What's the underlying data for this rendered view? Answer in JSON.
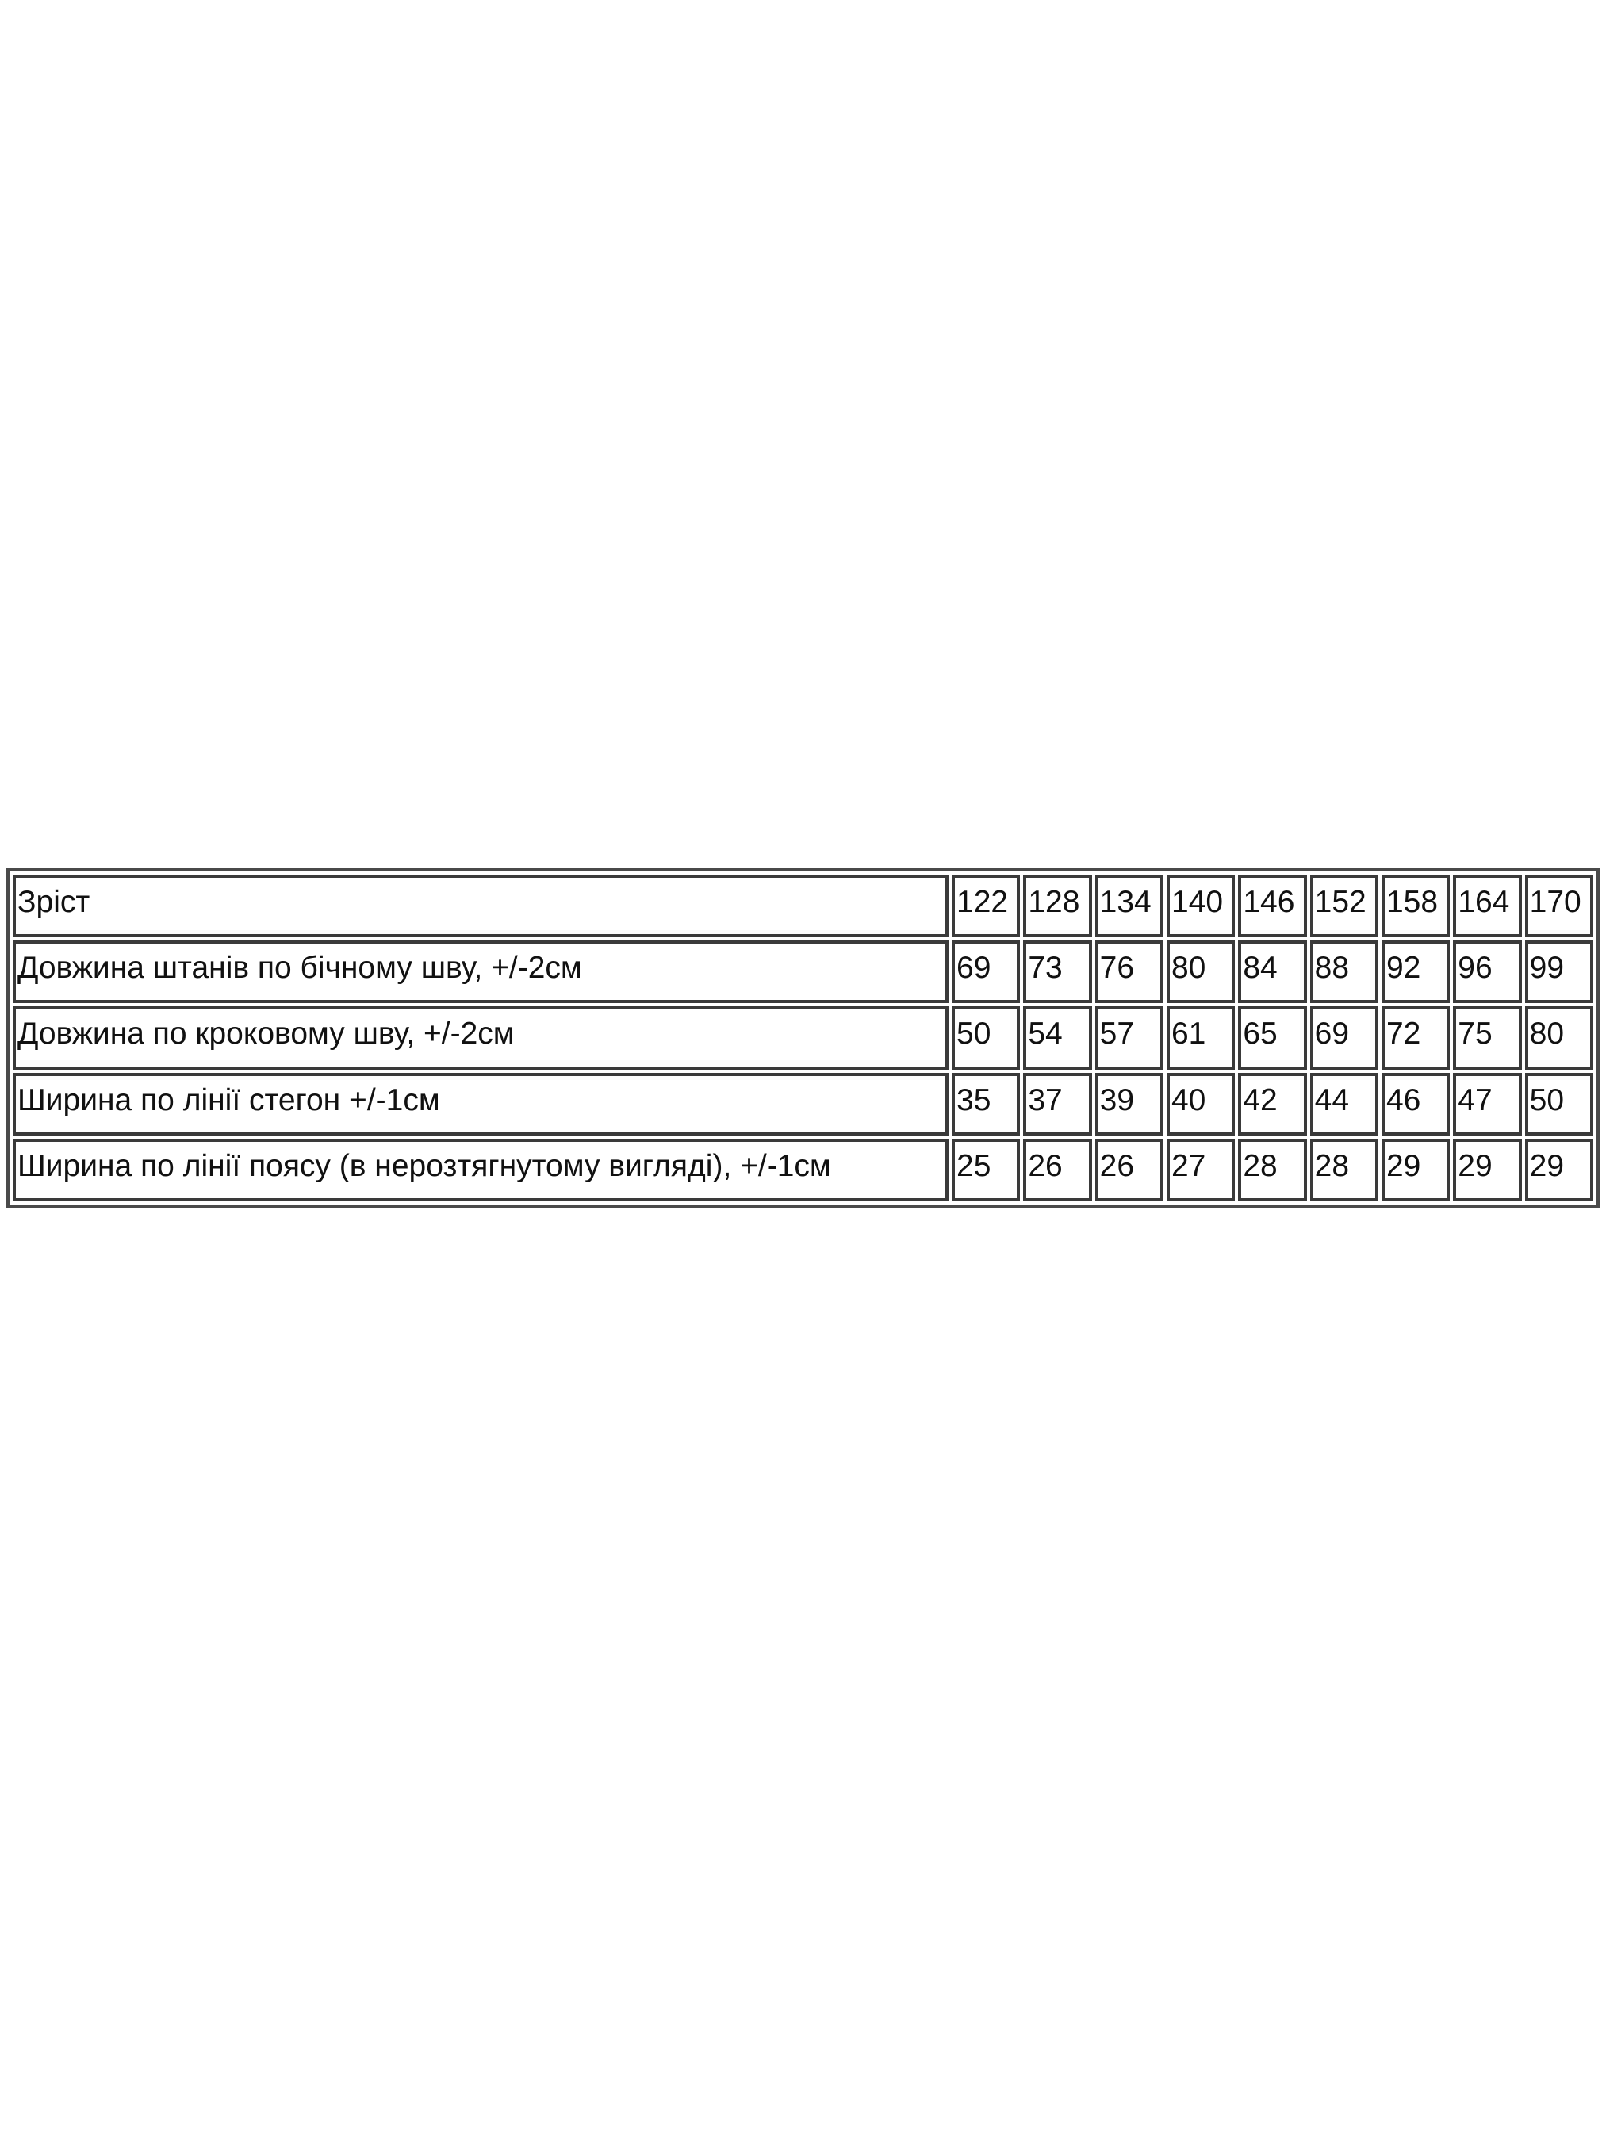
{
  "size_table": {
    "header": {
      "label": "Зріст",
      "values": [
        "122",
        "128",
        "134",
        "140",
        "146",
        "152",
        "158",
        "164",
        "170"
      ]
    },
    "rows": [
      {
        "label": "Довжина штанів по бічному шву, +/-2см",
        "values": [
          "69",
          "73",
          "76",
          "80",
          "84",
          "88",
          "92",
          "96",
          "99"
        ]
      },
      {
        "label": "Довжина по кроковому шву, +/-2см",
        "values": [
          "50",
          "54",
          "57",
          "61",
          "65",
          "69",
          "72",
          "75",
          "80"
        ]
      },
      {
        "label": "Ширина по лінії стегон +/-1см",
        "values": [
          "35",
          "37",
          "39",
          "40",
          "42",
          "44",
          "46",
          "47",
          "50"
        ]
      },
      {
        "label": "Ширина по лінії поясу (в нерозтягнутому вигляді), +/-1см",
        "values": [
          "25",
          "26",
          "26",
          "27",
          "28",
          "28",
          "29",
          "29",
          "29"
        ]
      }
    ]
  }
}
